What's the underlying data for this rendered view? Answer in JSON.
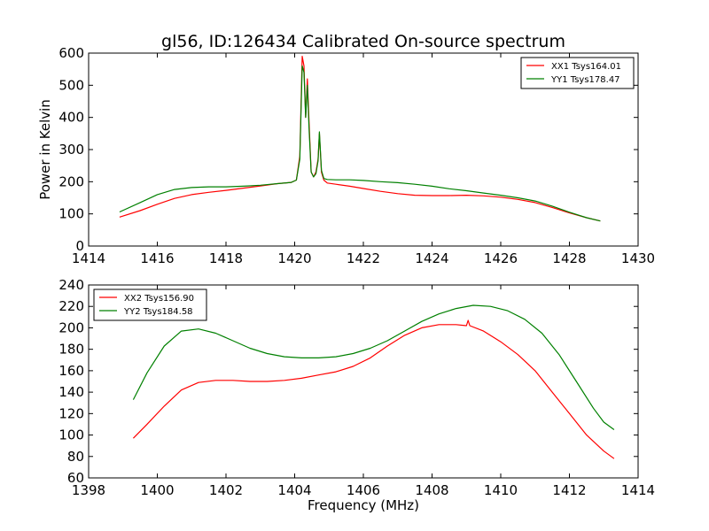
{
  "figure": {
    "title": "gl56, ID:126434 Calibrated On-source spectrum"
  },
  "chart_data": [
    {
      "type": "line",
      "ylabel": "Power in Kelvin",
      "xlabel": "",
      "xlim": [
        1414,
        1430
      ],
      "ylim": [
        0,
        600
      ],
      "xticks": [
        "1414",
        "1416",
        "1418",
        "1420",
        "1422",
        "1424",
        "1426",
        "1428",
        "1430"
      ],
      "yticks": [
        "0",
        "100",
        "200",
        "300",
        "400",
        "500",
        "600"
      ],
      "legend_position": "top-right",
      "series": [
        {
          "name": "XX1 Tsys164.01",
          "color": "#ff0000",
          "x": [
            1414.9,
            1415.5,
            1416.0,
            1416.5,
            1417.0,
            1417.5,
            1418.0,
            1418.5,
            1419.0,
            1419.5,
            1419.9,
            1420.05,
            1420.15,
            1420.22,
            1420.27,
            1420.32,
            1420.37,
            1420.42,
            1420.48,
            1420.55,
            1420.62,
            1420.68,
            1420.72,
            1420.78,
            1420.85,
            1420.95,
            1421.2,
            1421.6,
            1422.0,
            1422.5,
            1423.0,
            1423.5,
            1424.0,
            1424.5,
            1425.0,
            1425.5,
            1426.0,
            1426.5,
            1427.0,
            1427.5,
            1428.0,
            1428.5,
            1428.9
          ],
          "y": [
            90,
            110,
            130,
            148,
            160,
            167,
            173,
            180,
            187,
            194,
            198,
            205,
            280,
            590,
            560,
            400,
            520,
            380,
            230,
            215,
            230,
            270,
            350,
            230,
            205,
            196,
            192,
            186,
            179,
            170,
            163,
            158,
            157,
            157,
            158,
            156,
            152,
            145,
            135,
            120,
            103,
            88,
            78
          ]
        },
        {
          "name": "YY1 Tsys178.47",
          "color": "#008000",
          "x": [
            1414.9,
            1415.5,
            1416.0,
            1416.5,
            1417.0,
            1417.5,
            1418.0,
            1418.5,
            1419.0,
            1419.5,
            1419.9,
            1420.05,
            1420.15,
            1420.22,
            1420.27,
            1420.32,
            1420.37,
            1420.42,
            1420.48,
            1420.55,
            1420.62,
            1420.68,
            1420.72,
            1420.78,
            1420.85,
            1420.95,
            1421.2,
            1421.6,
            1422.0,
            1422.5,
            1423.0,
            1423.5,
            1424.0,
            1424.5,
            1425.0,
            1425.5,
            1426.0,
            1426.5,
            1427.0,
            1427.5,
            1428.0,
            1428.5,
            1428.9
          ],
          "y": [
            106,
            135,
            160,
            176,
            182,
            184,
            184,
            186,
            189,
            194,
            198,
            205,
            270,
            560,
            540,
            400,
            500,
            360,
            230,
            215,
            225,
            265,
            355,
            235,
            210,
            207,
            206,
            206,
            204,
            200,
            197,
            192,
            186,
            178,
            172,
            165,
            158,
            150,
            140,
            124,
            105,
            88,
            78
          ]
        }
      ]
    },
    {
      "type": "line",
      "ylabel": "",
      "xlabel": "Frequency (MHz)",
      "xlim": [
        1398,
        1414
      ],
      "ylim": [
        60,
        240
      ],
      "xticks": [
        "1398",
        "1400",
        "1402",
        "1404",
        "1406",
        "1408",
        "1410",
        "1412",
        "1414"
      ],
      "yticks": [
        "60",
        "80",
        "100",
        "120",
        "140",
        "160",
        "180",
        "200",
        "220",
        "240"
      ],
      "legend_position": "top-left",
      "series": [
        {
          "name": "XX2 Tsys156.90",
          "color": "#ff0000",
          "x": [
            1399.3,
            1399.7,
            1400.2,
            1400.7,
            1401.2,
            1401.7,
            1402.2,
            1402.7,
            1403.2,
            1403.7,
            1404.2,
            1404.7,
            1405.2,
            1405.7,
            1406.2,
            1406.7,
            1407.2,
            1407.7,
            1408.2,
            1408.7,
            1409.0,
            1409.05,
            1409.1,
            1409.5,
            1410.0,
            1410.5,
            1411.0,
            1411.5,
            1412.0,
            1412.5,
            1413.0,
            1413.3
          ],
          "y": [
            97,
            110,
            127,
            142,
            149,
            151,
            151,
            150,
            150,
            151,
            153,
            156,
            159,
            164,
            172,
            183,
            193,
            200,
            203,
            203,
            202,
            207,
            202,
            197,
            187,
            175,
            160,
            140,
            120,
            100,
            85,
            78
          ]
        },
        {
          "name": "YY2 Tsys184.58",
          "color": "#008000",
          "x": [
            1399.3,
            1399.7,
            1400.2,
            1400.7,
            1401.2,
            1401.7,
            1402.2,
            1402.7,
            1403.2,
            1403.7,
            1404.2,
            1404.7,
            1405.2,
            1405.7,
            1406.2,
            1406.7,
            1407.2,
            1407.7,
            1408.2,
            1408.7,
            1409.2,
            1409.7,
            1410.2,
            1410.7,
            1411.2,
            1411.7,
            1412.2,
            1412.7,
            1413.0,
            1413.3
          ],
          "y": [
            133,
            158,
            183,
            197,
            199,
            195,
            188,
            181,
            176,
            173,
            172,
            172,
            173,
            176,
            181,
            188,
            197,
            206,
            213,
            218,
            221,
            220,
            216,
            208,
            195,
            175,
            150,
            125,
            112,
            105
          ]
        }
      ]
    }
  ]
}
